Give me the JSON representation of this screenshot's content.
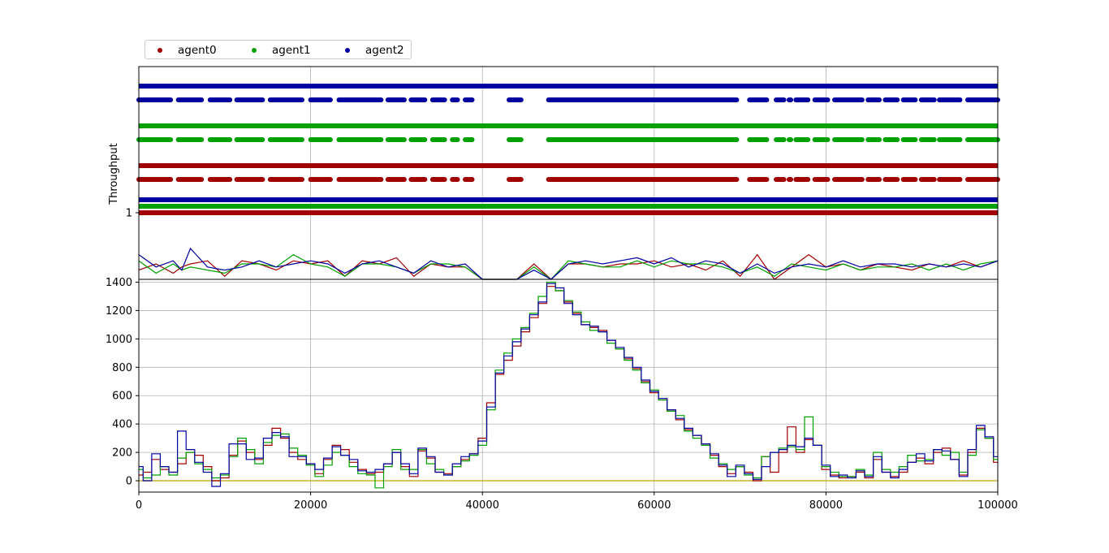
{
  "colors": {
    "agent0": "#a00000",
    "agent1": "#00a000",
    "agent2": "#0000a0",
    "zero_line": "#c8b432",
    "grid": "#b0b0b0"
  },
  "legend": {
    "placement": "top-left, above plot",
    "entries": [
      {
        "label": "agent0",
        "color": "#a00000"
      },
      {
        "label": "agent1",
        "color": "#00a000"
      },
      {
        "label": "agent2",
        "color": "#0000a0"
      }
    ]
  },
  "chart_data": [
    {
      "type": "scatter",
      "panel": "top",
      "ylabel": "Throughput",
      "xlim": [
        0,
        100000
      ],
      "yticks": [
        {
          "value": 1,
          "label": "1"
        }
      ],
      "grid": true,
      "series": [
        {
          "name": "agent0",
          "marker": "dot",
          "rows": [
            {
              "label": "",
              "kind": "continuous"
            },
            {
              "label": "",
              "kind": "dashed"
            },
            {
              "label": "",
              "kind": "continuous"
            }
          ]
        },
        {
          "name": "agent1",
          "marker": "dot",
          "rows": [
            {
              "label": "",
              "kind": "continuous"
            },
            {
              "label": "",
              "kind": "dashed"
            },
            {
              "label": "",
              "kind": "continuous"
            }
          ]
        },
        {
          "name": "agent2",
          "marker": "dot",
          "rows": [
            {
              "label": "",
              "kind": "continuous"
            },
            {
              "label": "",
              "kind": "dashed"
            },
            {
              "label": "",
              "kind": "continuous"
            }
          ]
        }
      ],
      "dashed_row_gaps": [
        [
          3800,
          4500
        ],
        [
          7400,
          8200
        ],
        [
          10700,
          11300
        ],
        [
          14500,
          15200
        ],
        [
          19100,
          19900
        ],
        [
          22400,
          23200
        ],
        [
          28300,
          28900
        ],
        [
          31000,
          31600
        ],
        [
          33400,
          34100
        ],
        [
          35700,
          36400
        ],
        [
          37200,
          37900
        ],
        [
          38900,
          43000
        ],
        [
          44600,
          47600
        ],
        [
          69700,
          71000
        ],
        [
          73200,
          74100
        ],
        [
          75200,
          75600
        ],
        [
          76000,
          76400
        ],
        [
          78000,
          78600
        ],
        [
          80300,
          80900
        ],
        [
          84300,
          84800
        ],
        [
          86300,
          86800
        ],
        [
          88400,
          88900
        ],
        [
          90500,
          91000
        ],
        [
          92700,
          93100
        ],
        [
          95700,
          96400
        ]
      ],
      "lower_curves": {
        "description_free": true,
        "x": [
          0,
          2000,
          4000,
          5000,
          6000,
          8000,
          10000,
          12000,
          14000,
          16000,
          18000,
          20000,
          22000,
          24000,
          26000,
          28000,
          30000,
          32000,
          34000,
          36000,
          38000,
          40000,
          42000,
          44000,
          46000,
          48000,
          50000,
          52000,
          54000,
          56000,
          58000,
          60000,
          62000,
          64000,
          66000,
          68000,
          70000,
          72000,
          74000,
          76000,
          78000,
          80000,
          82000,
          84000,
          86000,
          88000,
          90000,
          92000,
          94000,
          96000,
          98000,
          100000
        ],
        "agent0": [
          0.3,
          0.5,
          0.2,
          0.4,
          0.5,
          0.6,
          0.1,
          0.6,
          0.5,
          0.3,
          0.6,
          0.5,
          0.6,
          0.1,
          0.6,
          0.5,
          0.7,
          0.1,
          0.5,
          0.4,
          0.4,
          0.0,
          0.0,
          0.0,
          0.5,
          0.0,
          0.5,
          0.5,
          0.4,
          0.5,
          0.5,
          0.6,
          0.4,
          0.5,
          0.3,
          0.6,
          0.1,
          0.8,
          0.0,
          0.4,
          0.8,
          0.4,
          0.5,
          0.3,
          0.5,
          0.4,
          0.3,
          0.5,
          0.4,
          0.6,
          0.4,
          0.6
        ],
        "agent1": [
          0.6,
          0.2,
          0.5,
          0.3,
          0.4,
          0.3,
          0.2,
          0.5,
          0.5,
          0.4,
          0.8,
          0.5,
          0.4,
          0.1,
          0.5,
          0.5,
          0.4,
          0.2,
          0.5,
          0.5,
          0.4,
          0.0,
          0.0,
          0.0,
          0.4,
          0.0,
          0.6,
          0.5,
          0.4,
          0.4,
          0.6,
          0.4,
          0.6,
          0.5,
          0.5,
          0.4,
          0.2,
          0.4,
          0.1,
          0.5,
          0.4,
          0.3,
          0.5,
          0.3,
          0.4,
          0.4,
          0.5,
          0.3,
          0.5,
          0.3,
          0.5,
          0.6
        ],
        "agent2": [
          0.8,
          0.4,
          0.6,
          0.3,
          1.0,
          0.4,
          0.3,
          0.4,
          0.6,
          0.4,
          0.5,
          0.6,
          0.5,
          0.2,
          0.5,
          0.6,
          0.4,
          0.2,
          0.6,
          0.4,
          0.5,
          0.0,
          0.0,
          0.0,
          0.3,
          0.0,
          0.5,
          0.6,
          0.5,
          0.6,
          0.7,
          0.5,
          0.7,
          0.4,
          0.6,
          0.5,
          0.2,
          0.5,
          0.2,
          0.4,
          0.5,
          0.4,
          0.6,
          0.4,
          0.5,
          0.5,
          0.4,
          0.5,
          0.4,
          0.5,
          0.4,
          0.6
        ]
      }
    },
    {
      "type": "line",
      "panel": "bottom",
      "xlabel": "",
      "ylabel": "",
      "xlim": [
        0,
        100000
      ],
      "ylim": [
        -80,
        1420
      ],
      "xticks": [
        0,
        20000,
        40000,
        60000,
        80000,
        100000
      ],
      "yticks": [
        0,
        200,
        400,
        600,
        800,
        1000,
        1200,
        1400
      ],
      "grid": true,
      "x": [
        0,
        1000,
        2000,
        3000,
        4000,
        5000,
        6000,
        7000,
        8000,
        9000,
        10000,
        11000,
        12000,
        13000,
        14000,
        15000,
        16000,
        17000,
        18000,
        19000,
        20000,
        21000,
        22000,
        23000,
        24000,
        25000,
        26000,
        27000,
        28000,
        29000,
        30000,
        31000,
        32000,
        33000,
        34000,
        35000,
        36000,
        37000,
        38000,
        39000,
        40000,
        41000,
        42000,
        43000,
        44000,
        45000,
        46000,
        47000,
        48000,
        49000,
        50000,
        51000,
        52000,
        53000,
        54000,
        55000,
        56000,
        57000,
        58000,
        59000,
        60000,
        61000,
        62000,
        63000,
        64000,
        65000,
        66000,
        67000,
        68000,
        69000,
        70000,
        71000,
        72000,
        73000,
        74000,
        75000,
        76000,
        77000,
        78000,
        79000,
        80000,
        81000,
        82000,
        83000,
        84000,
        85000,
        86000,
        87000,
        88000,
        89000,
        90000,
        91000,
        92000,
        93000,
        94000,
        95000,
        96000,
        97000,
        98000,
        99000,
        100000
      ],
      "series": [
        {
          "name": "agent0",
          "values": [
            40,
            60,
            150,
            80,
            60,
            120,
            200,
            180,
            100,
            0,
            20,
            180,
            280,
            200,
            150,
            250,
            370,
            300,
            200,
            150,
            120,
            50,
            150,
            250,
            220,
            130,
            80,
            50,
            60,
            120,
            200,
            100,
            30,
            210,
            160,
            60,
            50,
            100,
            150,
            190,
            300,
            550,
            750,
            850,
            950,
            1050,
            1150,
            1250,
            1370,
            1340,
            1260,
            1180,
            1100,
            1080,
            1060,
            990,
            930,
            860,
            790,
            700,
            620,
            570,
            500,
            430,
            360,
            320,
            250,
            180,
            100,
            50,
            100,
            60,
            0,
            170,
            60,
            200,
            380,
            200,
            290,
            250,
            80,
            40,
            20,
            30,
            60,
            20,
            150,
            60,
            30,
            60,
            130,
            160,
            120,
            200,
            230,
            150,
            40,
            200,
            370,
            300,
            130
          ]
        },
        {
          "name": "agent1",
          "values": [
            80,
            20,
            40,
            100,
            40,
            160,
            200,
            120,
            80,
            20,
            40,
            170,
            300,
            220,
            120,
            270,
            320,
            330,
            230,
            180,
            110,
            30,
            110,
            200,
            180,
            100,
            50,
            40,
            -50,
            100,
            220,
            80,
            80,
            220,
            120,
            80,
            40,
            100,
            140,
            180,
            250,
            500,
            780,
            900,
            1000,
            1080,
            1180,
            1300,
            1400,
            1340,
            1270,
            1190,
            1120,
            1060,
            1050,
            970,
            930,
            850,
            780,
            690,
            640,
            570,
            490,
            460,
            350,
            300,
            250,
            160,
            120,
            80,
            100,
            40,
            20,
            170,
            200,
            230,
            240,
            220,
            450,
            250,
            100,
            60,
            30,
            30,
            80,
            40,
            200,
            80,
            60,
            100,
            180,
            140,
            150,
            220,
            180,
            200,
            60,
            180,
            360,
            300,
            150
          ]
        },
        {
          "name": "agent2",
          "values": [
            100,
            0,
            190,
            100,
            60,
            350,
            220,
            130,
            60,
            -40,
            50,
            260,
            260,
            150,
            160,
            300,
            340,
            310,
            170,
            170,
            120,
            80,
            160,
            240,
            180,
            150,
            70,
            60,
            80,
            120,
            200,
            120,
            50,
            230,
            170,
            60,
            40,
            120,
            170,
            190,
            280,
            520,
            760,
            880,
            980,
            1070,
            1170,
            1260,
            1390,
            1360,
            1250,
            1170,
            1100,
            1090,
            1050,
            990,
            940,
            870,
            800,
            710,
            630,
            580,
            500,
            440,
            370,
            320,
            260,
            190,
            110,
            30,
            110,
            50,
            10,
            100,
            200,
            220,
            250,
            240,
            300,
            250,
            110,
            30,
            40,
            20,
            70,
            30,
            170,
            60,
            20,
            80,
            130,
            190,
            140,
            220,
            210,
            150,
            30,
            220,
            390,
            310,
            170
          ]
        },
        {
          "name": "",
          "color": "#c8b432",
          "values_constant": 0
        }
      ]
    }
  ]
}
